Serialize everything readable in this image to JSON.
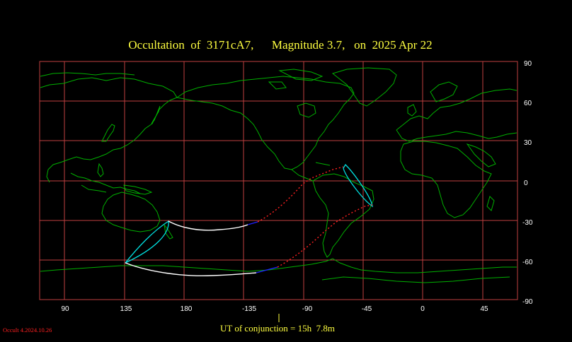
{
  "title": "Occultation  of  3171cA7,      Magnitude 3.7,   on  2025 Apr 22",
  "lon_labels": [
    "90",
    "135",
    "180",
    "-135",
    "-90",
    "-45",
    "0",
    "45"
  ],
  "lat_labels": [
    "90",
    "60",
    "30",
    "0",
    "-30",
    "-60",
    "-90"
  ],
  "conjunction_text": "UT of conjunction = 15h  7.8m",
  "version_text": "Occult 4.2024.10.26",
  "colors": {
    "background": "#000000",
    "grid": "#c04040",
    "coast": "#00b000",
    "title": "#ffff40",
    "path_day": "#ffffff",
    "path_twilight": "#2020ff",
    "path_night": "#ff2020",
    "limit_curve": "#00e0e0",
    "axis_text": "#ffffff",
    "version_text": "#ff2020"
  }
}
